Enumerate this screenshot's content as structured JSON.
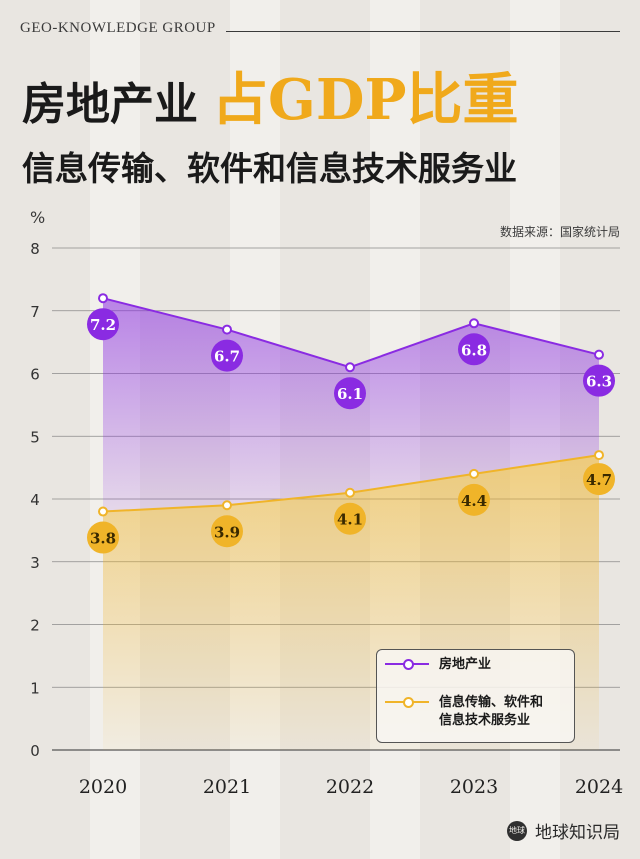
{
  "brand": "GEO-KNOWLEDGE GROUP",
  "title": {
    "part1": "房地产业",
    "highlight": "占GDP比重",
    "line2": "信息传输、软件和信息技术服务业"
  },
  "unit_label": "%",
  "source": "数据来源：国家统计局",
  "footer": {
    "logo_text": "地球知识局",
    "logo_mark": "地球"
  },
  "colors": {
    "real_estate": "#8a2be2",
    "it_services": "#f0b429",
    "accent_title": "#f0a91b"
  },
  "legend": {
    "real_estate": "房地产业",
    "it_services_line1": "信息传输、软件和",
    "it_services_line2": "信息技术服务业"
  },
  "chart_data": {
    "type": "area",
    "categories": [
      "2020",
      "2021",
      "2022",
      "2023",
      "2024"
    ],
    "series": [
      {
        "name": "房地产业",
        "values": [
          7.2,
          6.7,
          6.1,
          6.8,
          6.3
        ]
      },
      {
        "name": "信息传输、软件和信息技术服务业",
        "values": [
          3.8,
          3.9,
          4.1,
          4.4,
          4.7
        ]
      }
    ],
    "ylim": [
      0,
      8
    ],
    "yticks": [
      0,
      1,
      2,
      3,
      4,
      5,
      6,
      7,
      8
    ],
    "ylabel": "%",
    "grid": true,
    "legend_position": "bottom-right"
  }
}
